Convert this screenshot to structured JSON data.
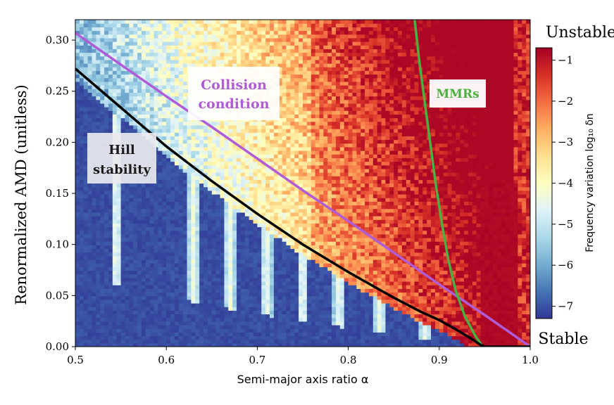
{
  "chart_data": {
    "type": "heatmap",
    "title": "",
    "xlabel": "Semi-major axis ratio α",
    "ylabel": "Renormalized AMD (unitless)",
    "xlim": [
      0.5,
      1.0
    ],
    "ylim": [
      0.0,
      0.32
    ],
    "x_ticks": [
      "0.5",
      "0.6",
      "0.7",
      "0.8",
      "0.9",
      "1.0"
    ],
    "y_ticks": [
      "0.00",
      "0.05",
      "0.10",
      "0.15",
      "0.20",
      "0.25",
      "0.30"
    ],
    "colorbar": {
      "label": "Frequency variation log₁₀ δn",
      "range": [
        -7.3,
        -0.7
      ],
      "ticks": [
        "−1",
        "−2",
        "−3",
        "−4",
        "−5",
        "−6",
        "−7"
      ],
      "tick_values": [
        -1,
        -2,
        -3,
        -4,
        -5,
        -6,
        -7
      ],
      "colormap": [
        "#313695",
        "#4575b4",
        "#74add1",
        "#abd9e9",
        "#e0f3f8",
        "#ffffbf",
        "#fee090",
        "#fdae61",
        "#f46d43",
        "#d73027",
        "#a50026"
      ],
      "top_label": "Unstable",
      "bottom_label": "Stable"
    },
    "series": [
      {
        "name": "Collision condition",
        "color": "#b05cd6",
        "x": [
          0.5,
          0.55,
          0.6,
          0.65,
          0.7,
          0.75,
          0.8,
          0.85,
          0.9,
          0.95,
          1.0
        ],
        "y": [
          0.307,
          0.276,
          0.245,
          0.215,
          0.184,
          0.153,
          0.123,
          0.092,
          0.061,
          0.031,
          0.0
        ]
      },
      {
        "name": "Hill stability",
        "color": "#000000",
        "x": [
          0.5,
          0.55,
          0.6,
          0.65,
          0.7,
          0.75,
          0.8,
          0.85,
          0.88,
          0.9,
          0.92,
          0.935,
          0.945,
          0.95,
          1.0
        ],
        "y": [
          0.272,
          0.234,
          0.196,
          0.162,
          0.13,
          0.1,
          0.073,
          0.048,
          0.034,
          0.026,
          0.016,
          0.008,
          0.002,
          0.0,
          0.0
        ]
      },
      {
        "name": "MMRs",
        "color": "#4caf3f",
        "x": [
          0.873,
          0.878,
          0.884,
          0.89,
          0.896,
          0.903,
          0.91,
          0.918,
          0.928,
          0.94,
          0.948
        ],
        "y": [
          0.32,
          0.28,
          0.24,
          0.2,
          0.16,
          0.12,
          0.085,
          0.055,
          0.03,
          0.01,
          0.0
        ]
      }
    ],
    "annotations": [
      {
        "text_lines": [
          "Collision",
          "condition"
        ],
        "color": "#b05cd6"
      },
      {
        "text_lines": [
          "Hill",
          "stability"
        ],
        "color": "#1a1a1a"
      },
      {
        "text_lines": [
          "MMRs"
        ],
        "color": "#4caf3f"
      }
    ]
  }
}
